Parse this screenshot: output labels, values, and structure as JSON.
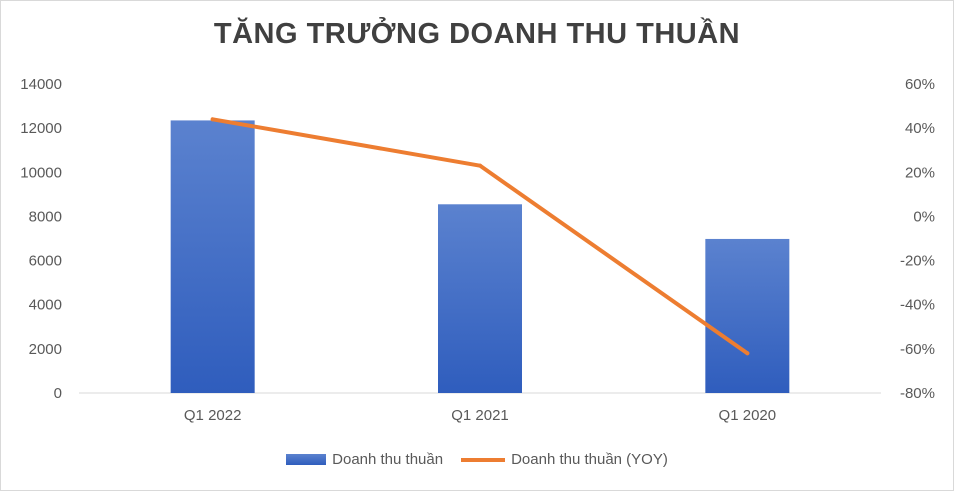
{
  "chart_data": {
    "type": "bar",
    "title": "TĂNG TRƯỞNG DOANH THU THUẦN",
    "categories": [
      "Q1 2022",
      "Q1 2021",
      "Q1 2020"
    ],
    "series": [
      {
        "name": "Doanh thu thuần",
        "type": "bar",
        "axis": "left",
        "values": [
          12350,
          8550,
          6980
        ],
        "color": "#4472c4"
      },
      {
        "name": "Doanh thu thuần (YOY)",
        "type": "line",
        "axis": "right",
        "values": [
          0.44,
          0.23,
          -0.62
        ],
        "color": "#ed7d31"
      }
    ],
    "y_left": {
      "range": [
        0,
        14000
      ],
      "ticks": [
        "0",
        "2000",
        "4000",
        "6000",
        "8000",
        "10000",
        "12000",
        "14000"
      ]
    },
    "y_right": {
      "range": [
        -0.8,
        0.6
      ],
      "ticks": [
        "-80%",
        "-60%",
        "-40%",
        "-20%",
        "0%",
        "20%",
        "40%",
        "60%"
      ]
    },
    "grid": false,
    "legend_position": "bottom"
  }
}
